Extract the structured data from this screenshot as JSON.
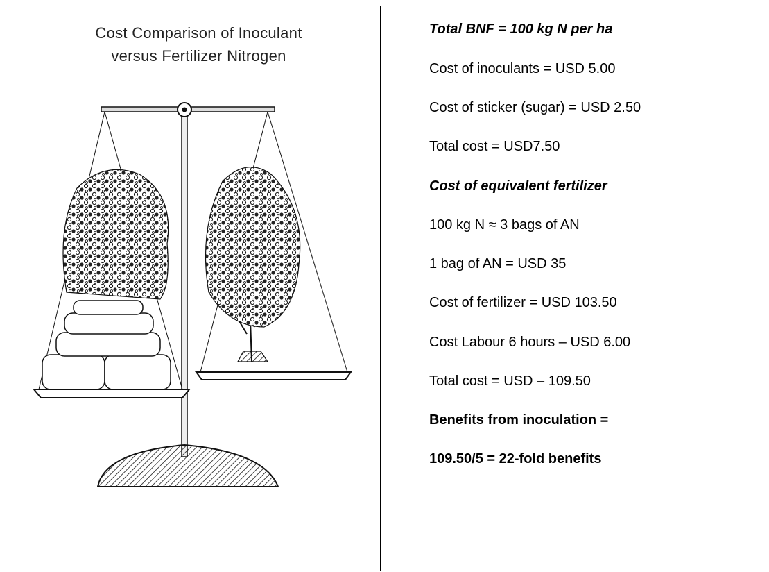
{
  "left_panel": {
    "title_lines": [
      "Cost Comparison of Inoculant",
      "versus Fertilizer Nitrogen"
    ]
  },
  "right_panel": {
    "lines": [
      "Total BNF = 100 kg N per ha",
      "Cost of inoculants = USD 5.00",
      "Cost of sticker (sugar) = USD 2.50",
      "Total cost = USD7.50",
      "Cost of equivalent fertilizer",
      "100 kg N ≈ 3 bags of AN",
      "1 bag of AN = USD 35",
      "Cost of fertilizer = USD 103.50",
      "Cost Labour 6 hours – USD 6.00",
      "Total cost = USD – 109.50",
      "Benefits from inoculation =",
      "109.50/5 = 22-fold benefits"
    ]
  }
}
